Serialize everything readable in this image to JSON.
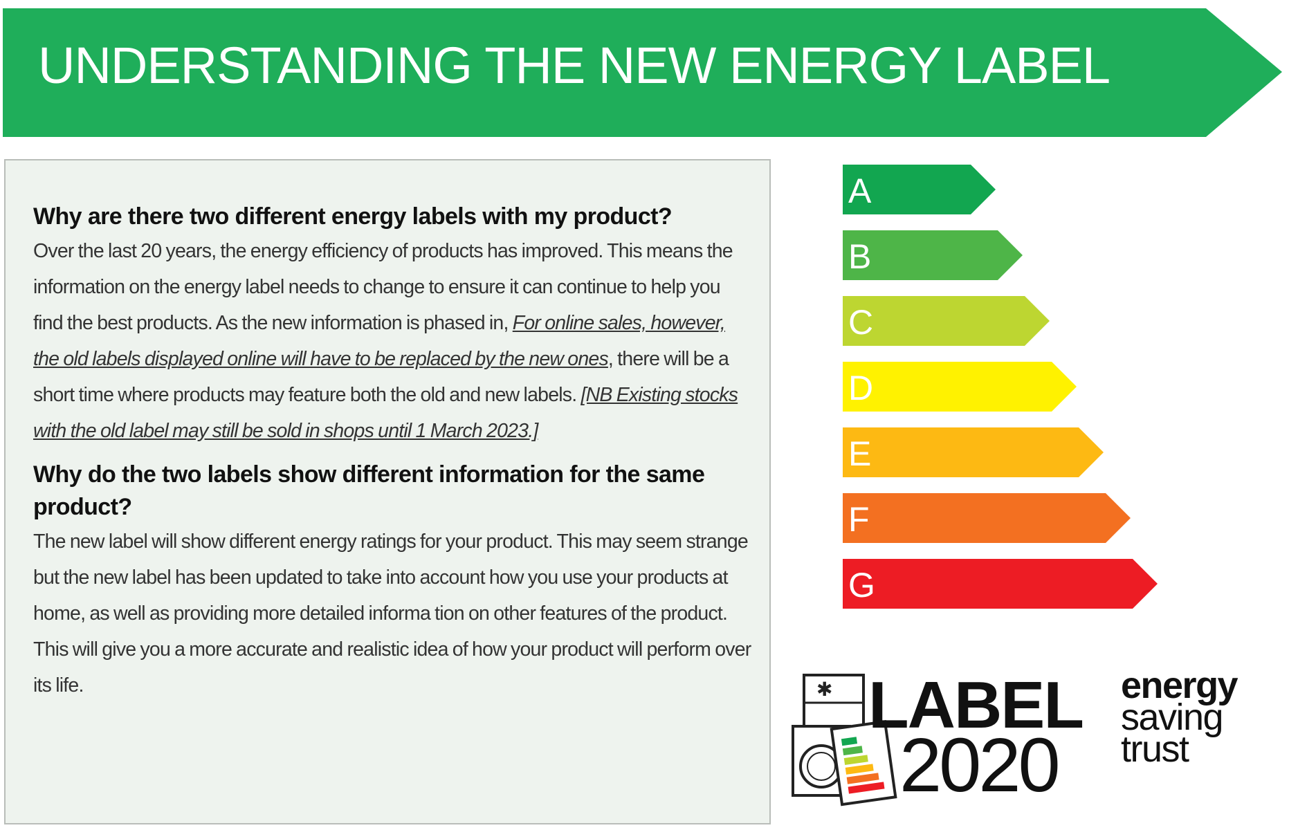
{
  "banner": {
    "title": "UNDERSTANDING THE NEW ENERGY LABEL",
    "color": "#1fae5a"
  },
  "info": {
    "q1": "Why are there two different energy labels with my product?",
    "p1_part1": "Over the last 20 years, the energy efficiency of products has improved. This means the information on the energy label needs to change to ensure it can continue to help you find the best products. As the new information is phased in, ",
    "p1_link": "For online sales, however, the old labels displayed online will have to be replaced by the new ones",
    "p1_part2": ", there will be a short time where products may feature both the old and new labels. ",
    "p1_note": "[NB Existing stocks with the old label may still be sold in shops until 1 March 2023.]",
    "q2": "Why do the two labels show different information for the same product?",
    "p2": "The new label will show different energy ratings for your product. This may seem strange but the new label has been updated to take into account how you use your products at home, as well as providing more detailed informa tion on other features of the product. This will give you a more accurate and realistic idea of how your product will perform over its life."
  },
  "scale": [
    {
      "letter": "A",
      "color": "#12a650"
    },
    {
      "letter": "B",
      "color": "#4eb548"
    },
    {
      "letter": "C",
      "color": "#bdd631"
    },
    {
      "letter": "D",
      "color": "#fff200"
    },
    {
      "letter": "E",
      "color": "#fdb913"
    },
    {
      "letter": "F",
      "color": "#f37021"
    },
    {
      "letter": "G",
      "color": "#ed1c24"
    }
  ],
  "logos": {
    "label_word": "LABEL",
    "label_year": "2020",
    "est_line1": "energy",
    "est_line2": "saving",
    "est_line3": "trust"
  }
}
